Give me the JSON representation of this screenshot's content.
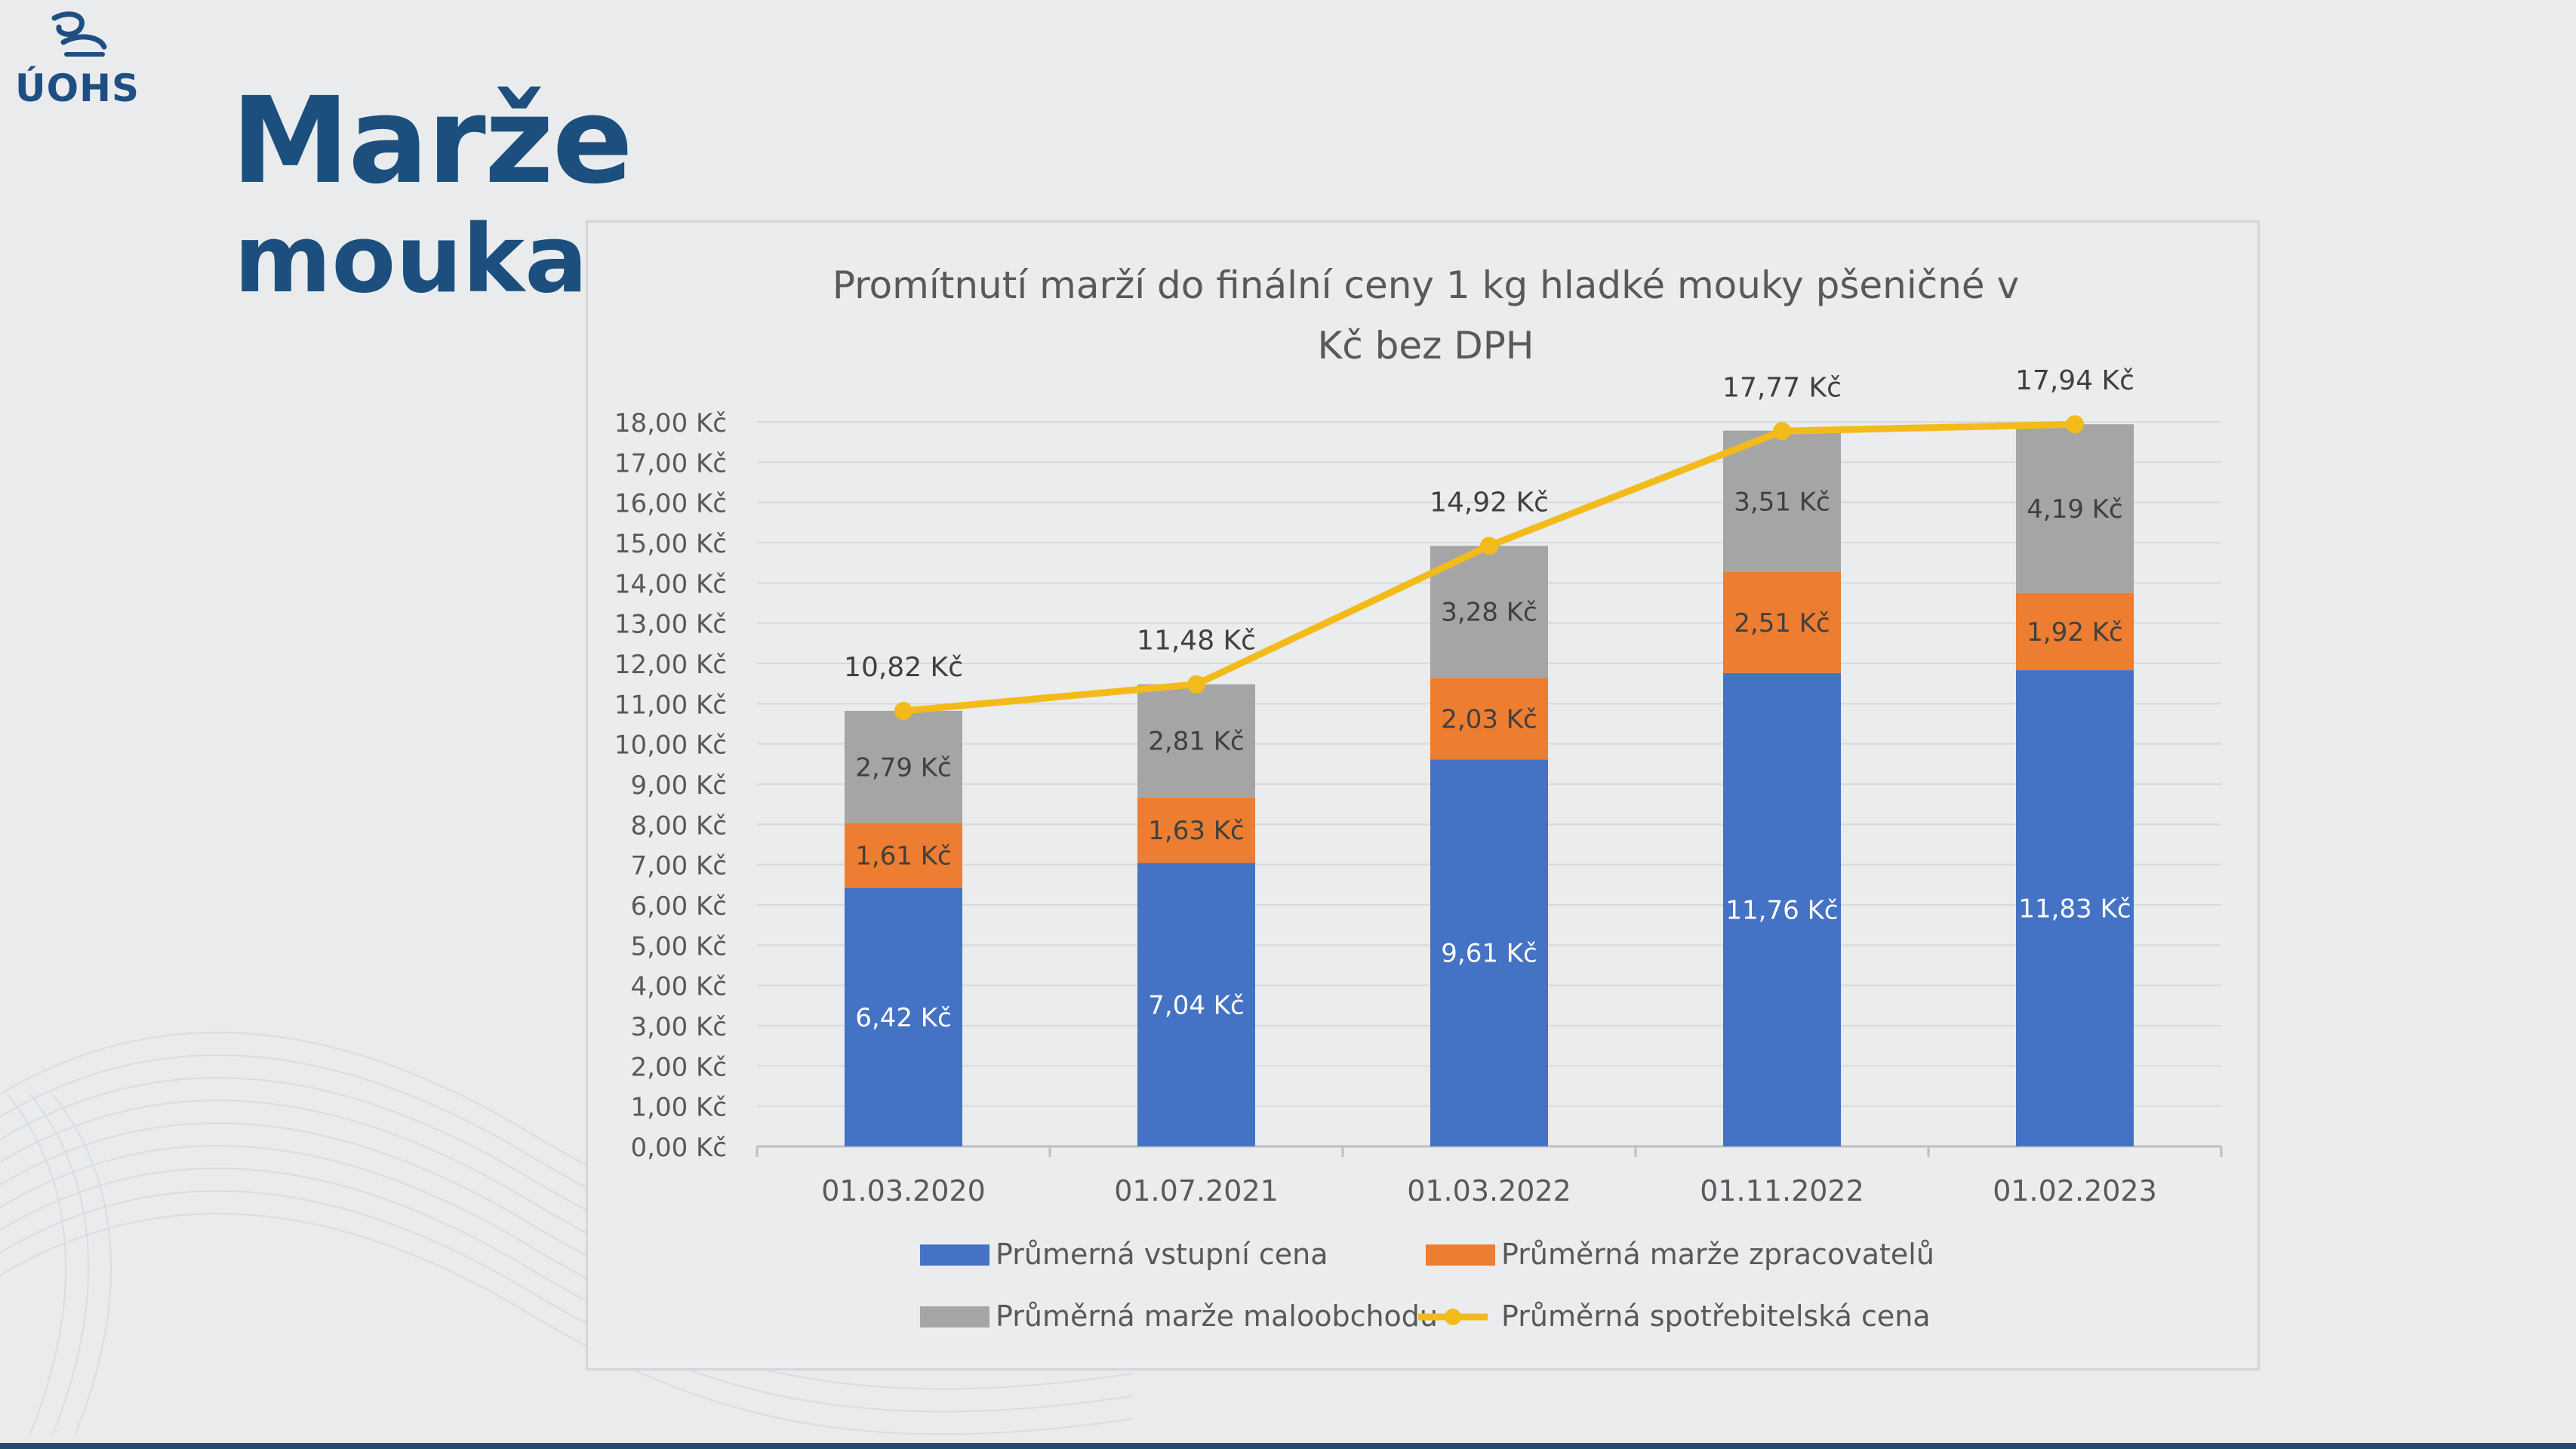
{
  "logo": {
    "text": "ÚOHS"
  },
  "slide": {
    "title": "Marže",
    "subtitle": "mouka"
  },
  "colors": {
    "title": "#1c4f7e",
    "series_input": "#4472c4",
    "series_processor": "#ed7d31",
    "series_retail": "#a5a5a5",
    "series_consumer": "#f2bb1a"
  },
  "chart_data": {
    "type": "bar",
    "stacked": true,
    "title": "Promítnutí marží do finální ceny 1 kg hladké mouky pšeničné v Kč bez DPH",
    "title_lines": [
      "Promítnutí marží do finální ceny 1 kg hladké mouky pšeničné v",
      "Kč bez DPH"
    ],
    "categories": [
      "01.03.2020",
      "01.07.2021",
      "01.03.2022",
      "01.11.2022",
      "01.02.2023"
    ],
    "ylim": [
      0,
      18
    ],
    "y_ticks": [
      0,
      1,
      2,
      3,
      4,
      5,
      6,
      7,
      8,
      9,
      10,
      11,
      12,
      13,
      14,
      15,
      16,
      17,
      18
    ],
    "y_tick_labels": [
      "0,00 Kč",
      "1,00 Kč",
      "2,00 Kč",
      "3,00 Kč",
      "4,00 Kč",
      "5,00 Kč",
      "6,00 Kč",
      "7,00 Kč",
      "8,00 Kč",
      "9,00 Kč",
      "10,00 Kč",
      "11,00 Kč",
      "12,00 Kč",
      "13,00 Kč",
      "14,00 Kč",
      "15,00 Kč",
      "16,00 Kč",
      "17,00 Kč",
      "18,00 Kč"
    ],
    "grid": true,
    "legend_position": "bottom",
    "series": [
      {
        "name": "Průmerná vstupní cena",
        "type": "bar",
        "color": "#4472c4",
        "values": [
          6.42,
          7.04,
          9.61,
          11.76,
          11.83
        ],
        "labels": [
          "6,42 Kč",
          "7,04 Kč",
          "9,61 Kč",
          "11,76 Kč",
          "11,83 Kč"
        ]
      },
      {
        "name": "Průměrná marže zpracovatelů",
        "type": "bar",
        "color": "#ed7d31",
        "values": [
          1.61,
          1.63,
          2.03,
          2.51,
          1.92
        ],
        "labels": [
          "1,61 Kč",
          "1,63 Kč",
          "2,03 Kč",
          "2,51 Kč",
          "1,92 Kč"
        ]
      },
      {
        "name": "Průměrná marže maloobchodu",
        "type": "bar",
        "color": "#a5a5a5",
        "values": [
          2.79,
          2.81,
          3.28,
          3.51,
          4.19
        ],
        "labels": [
          "2,79 Kč",
          "2,81 Kč",
          "3,28 Kč",
          "3,51 Kč",
          "4,19 Kč"
        ]
      },
      {
        "name": "Průměrná spotřebitelská cena",
        "type": "line",
        "color": "#f2bb1a",
        "values": [
          10.82,
          11.48,
          14.92,
          17.77,
          17.94
        ],
        "labels": [
          "10,82 Kč",
          "11,48 Kč",
          "14,92 Kč",
          "17,77 Kč",
          "17,94 Kč"
        ]
      }
    ]
  }
}
